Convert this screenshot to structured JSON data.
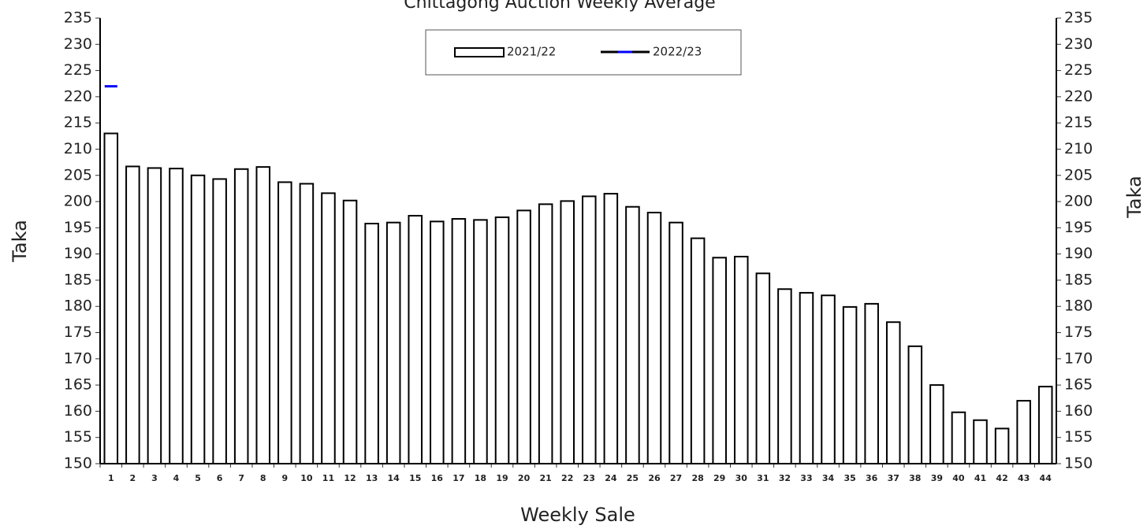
{
  "chart_data": {
    "type": "bar",
    "title": "Chittagong Auction Weekly Average",
    "x_label": "Weekly Sale",
    "y_label": "Taka",
    "y2_label": "Taka",
    "categories": [
      "1",
      "2",
      "3",
      "4",
      "5",
      "6",
      "7",
      "8",
      "9",
      "10",
      "11",
      "12",
      "13",
      "14",
      "15",
      "16",
      "17",
      "18",
      "19",
      "20",
      "21",
      "22",
      "23",
      "24",
      "25",
      "26",
      "27",
      "28",
      "29",
      "30",
      "31",
      "32",
      "33",
      "34",
      "35",
      "36",
      "37",
      "38",
      "39",
      "40",
      "41",
      "42",
      "43",
      "44"
    ],
    "series": [
      {
        "name": "2021/22",
        "type": "bar",
        "color": "#ffffff",
        "values": [
          213,
          206.7,
          206.4,
          206.3,
          205,
          204.3,
          206.2,
          206.6,
          203.7,
          203.4,
          201.6,
          200.2,
          195.8,
          196,
          197.3,
          196.2,
          196.7,
          196.5,
          197,
          198.3,
          199.5,
          200.1,
          201,
          201.5,
          199,
          197.9,
          196,
          193,
          189.3,
          189.5,
          186.3,
          183.3,
          182.6,
          182.1,
          179.9,
          180.5,
          177,
          172.4,
          165,
          159.8,
          158.3,
          156.7,
          162,
          164.7
        ]
      },
      {
        "name": "2022/23",
        "type": "line",
        "color": "#0000ff",
        "values": [
          222,
          null,
          null,
          null,
          null,
          null,
          null,
          null,
          null,
          null,
          null,
          null,
          null,
          null,
          null,
          null,
          null,
          null,
          null,
          null,
          null,
          null,
          null,
          null,
          null,
          null,
          null,
          null,
          null,
          null,
          null,
          null,
          null,
          null,
          null,
          null,
          null,
          null,
          null,
          null,
          null,
          null,
          null,
          null
        ]
      }
    ],
    "ylim": [
      150,
      235
    ],
    "yticks": [
      150,
      155,
      160,
      165,
      170,
      175,
      180,
      185,
      190,
      195,
      200,
      205,
      210,
      215,
      220,
      225,
      230,
      235
    ],
    "y2lim": [
      150,
      235
    ],
    "y2ticks": [
      150,
      155,
      160,
      165,
      170,
      175,
      180,
      185,
      190,
      195,
      200,
      205,
      210,
      215,
      220,
      225,
      230,
      235
    ],
    "legend": "top"
  }
}
